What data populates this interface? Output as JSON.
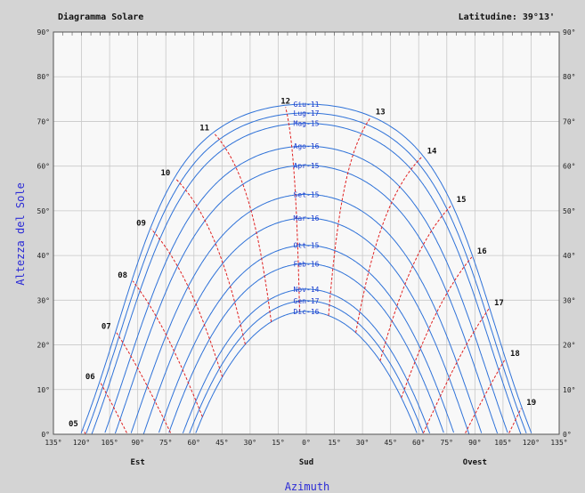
{
  "chart_data": {
    "type": "line",
    "title": "Diagramma Solare",
    "latitude_label": "Latitudine: 39°13'",
    "xlabel": "Azimuth",
    "ylabel": "Altezza del Sole",
    "x_unit": "degrees azimuth (negative = east, positive = west)",
    "xlim": [
      -135,
      135
    ],
    "ylim": [
      0,
      90
    ],
    "x_ticks": [
      {
        "v": -135,
        "label": "135°"
      },
      {
        "v": -120,
        "label": "120°"
      },
      {
        "v": -105,
        "label": "105°"
      },
      {
        "v": -90,
        "label": "90°"
      },
      {
        "v": -75,
        "label": "75°"
      },
      {
        "v": -60,
        "label": "60°"
      },
      {
        "v": -45,
        "label": "45°"
      },
      {
        "v": -30,
        "label": "30°"
      },
      {
        "v": -15,
        "label": "15°"
      },
      {
        "v": 0,
        "label": "0°"
      },
      {
        "v": 15,
        "label": "15°"
      },
      {
        "v": 30,
        "label": "30°"
      },
      {
        "v": 45,
        "label": "45°"
      },
      {
        "v": 60,
        "label": "60°"
      },
      {
        "v": 75,
        "label": "75°"
      },
      {
        "v": 90,
        "label": "90°"
      },
      {
        "v": 105,
        "label": "105°"
      },
      {
        "v": 120,
        "label": "120°"
      },
      {
        "v": 135,
        "label": "135°"
      }
    ],
    "y_ticks": [
      {
        "v": 0,
        "label": "0°"
      },
      {
        "v": 10,
        "label": "10°"
      },
      {
        "v": 20,
        "label": "20°"
      },
      {
        "v": 30,
        "label": "30°"
      },
      {
        "v": 40,
        "label": "40°"
      },
      {
        "v": 50,
        "label": "50°"
      },
      {
        "v": 60,
        "label": "60°"
      },
      {
        "v": 70,
        "label": "70°"
      },
      {
        "v": 80,
        "label": "80°"
      },
      {
        "v": 90,
        "label": "90°"
      }
    ],
    "direction_labels": [
      {
        "v": -90,
        "label": "Est"
      },
      {
        "v": 0,
        "label": "Sud"
      },
      {
        "v": 90,
        "label": "Ovest"
      }
    ],
    "grid": true,
    "latitude_deg": 39.22,
    "series": [
      {
        "name": "Giu-11",
        "declination": 23.1
      },
      {
        "name": "Lug-17",
        "declination": 21.1
      },
      {
        "name": "Mag-15",
        "declination": 18.8
      },
      {
        "name": "Ago-16",
        "declination": 13.7
      },
      {
        "name": "Apr-15",
        "declination": 9.4
      },
      {
        "name": "Set-15",
        "declination": 2.9
      },
      {
        "name": "Mar-16",
        "declination": -2.4
      },
      {
        "name": "Ott-15",
        "declination": -8.5
      },
      {
        "name": "Feb-16",
        "declination": -12.6
      },
      {
        "name": "Nov-14",
        "declination": -18.3
      },
      {
        "name": "Gen-17",
        "declination": -20.9
      },
      {
        "name": "Dic-16",
        "declination": -23.3
      }
    ],
    "hour_lines": [
      "05",
      "06",
      "07",
      "08",
      "09",
      "10",
      "11",
      "12",
      "13",
      "14",
      "15",
      "16",
      "17",
      "18",
      "19"
    ],
    "hour_offset_hours": 0.23,
    "colors": {
      "plot_bg": "#f8f8f8",
      "frame_bg": "#d4d4d4",
      "grid": "#c8c8c8",
      "day_curve": "#2f72d8",
      "hour_line": "#e02020",
      "axis_title": "#2b2bd6",
      "day_label": "#1a3ccf"
    }
  }
}
